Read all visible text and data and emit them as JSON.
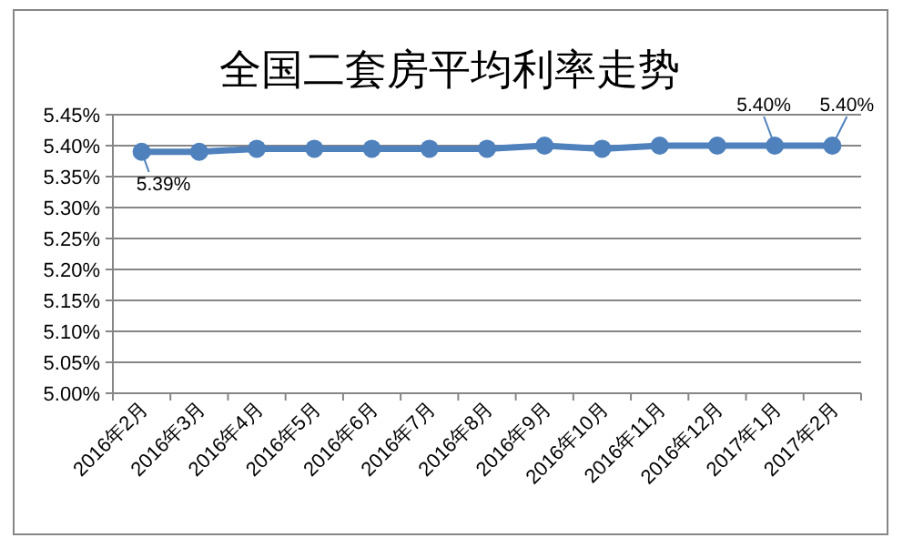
{
  "chart_data": {
    "type": "line",
    "title": "全国二套房平均利率走势",
    "categories": [
      "2016年2月",
      "2016年3月",
      "2016年4月",
      "2016年5月",
      "2016年6月",
      "2016年7月",
      "2016年8月",
      "2016年9月",
      "2016年10月",
      "2016年11月",
      "2016年12月",
      "2017年1月",
      "2017年2月"
    ],
    "series": [
      {
        "color": "#4f81bd",
        "values": [
          5.39,
          5.39,
          5.395,
          5.395,
          5.395,
          5.395,
          5.395,
          5.4,
          5.395,
          5.4,
          5.4,
          5.4,
          5.4
        ],
        "value_labels": [
          "5.39%",
          null,
          null,
          null,
          null,
          null,
          null,
          null,
          null,
          null,
          null,
          "5.40%",
          "5.40%"
        ]
      }
    ],
    "ylim": [
      5.0,
      5.45
    ],
    "yticks": [
      {
        "value": 5.0,
        "label": "5.00%"
      },
      {
        "value": 5.05,
        "label": "5.05%"
      },
      {
        "value": 5.1,
        "label": "5.10%"
      },
      {
        "value": 5.15,
        "label": "5.15%"
      },
      {
        "value": 5.2,
        "label": "5.20%"
      },
      {
        "value": 5.25,
        "label": "5.25%"
      },
      {
        "value": 5.3,
        "label": "5.30%"
      },
      {
        "value": 5.35,
        "label": "5.35%"
      },
      {
        "value": 5.4,
        "label": "5.40%"
      },
      {
        "value": 5.45,
        "label": "5.45%"
      }
    ],
    "grid": "y",
    "marker": "circle",
    "line_style": "solid"
  }
}
